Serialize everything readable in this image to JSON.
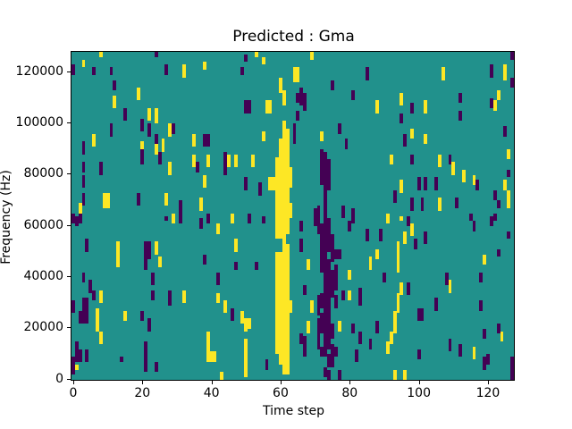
{
  "title": "Predicted : Gma",
  "chart_data": {
    "type": "heatmap",
    "title": "Predicted : Gma",
    "xlabel": "Time step",
    "ylabel": "Frequency (Hz)",
    "x_ticks": [
      0,
      20,
      40,
      60,
      80,
      100,
      120
    ],
    "y_ticks": [
      0,
      20000,
      40000,
      60000,
      80000,
      100000,
      120000
    ],
    "x_range": [
      0,
      128
    ],
    "y_range_hz": [
      0,
      128000
    ],
    "grid": [
      128,
      128
    ],
    "legend": "none",
    "colors": {
      "background_value": "#21918c",
      "high_value": "#fde725",
      "low_value": "#440154",
      "figure_background": "#ffffff",
      "axes_frame": "#000000"
    },
    "notes": "cells encoded as [time_index, freq_bin_low, freq_bin_high, optional_width_in_columns]; freq bin = kHz index from bottom (0..127)",
    "cells": {
      "yellow": [
        [
          59,
          10,
          49
        ],
        [
          59,
          55,
          86
        ],
        [
          60,
          6,
          49
        ],
        [
          60,
          55,
          93
        ],
        [
          60,
          112,
          117
        ],
        [
          61,
          2,
          100
        ],
        [
          61,
          107,
          112
        ],
        [
          62,
          2,
          52
        ],
        [
          62,
          57,
          97
        ],
        [
          63,
          63,
          68
        ],
        [
          63,
          75,
          82
        ],
        [
          63,
          26,
          30
        ],
        [
          8,
          126,
          127
        ],
        [
          3,
          122,
          124
        ],
        [
          53,
          126,
          127
        ],
        [
          55,
          123,
          125
        ],
        [
          38,
          121,
          123
        ],
        [
          32,
          118,
          122
        ],
        [
          19,
          109,
          113
        ],
        [
          12,
          106,
          110
        ],
        [
          22,
          101,
          105
        ],
        [
          24,
          100,
          105
        ],
        [
          56,
          104,
          108,
          2
        ],
        [
          26,
          89,
          93
        ],
        [
          28,
          95,
          99
        ],
        [
          35,
          91,
          95
        ],
        [
          6,
          91,
          95
        ],
        [
          20,
          88,
          92
        ],
        [
          24,
          88,
          92
        ],
        [
          35,
          83,
          87
        ],
        [
          39,
          83,
          87
        ],
        [
          45,
          83,
          87
        ],
        [
          47,
          83,
          87
        ],
        [
          52,
          83,
          87
        ],
        [
          28,
          80,
          84
        ],
        [
          38,
          75,
          79
        ],
        [
          57,
          74,
          78,
          2
        ],
        [
          2,
          64,
          68
        ],
        [
          9,
          67,
          72,
          2
        ],
        [
          27,
          68,
          72
        ],
        [
          29,
          61,
          64
        ],
        [
          37,
          66,
          70
        ],
        [
          46,
          61,
          64
        ],
        [
          55,
          93,
          96
        ],
        [
          31,
          61,
          63
        ],
        [
          46,
          62,
          63
        ],
        [
          42,
          57,
          60
        ],
        [
          13,
          44,
          53
        ],
        [
          24,
          49,
          53
        ],
        [
          25,
          44,
          47
        ],
        [
          47,
          50,
          54
        ],
        [
          8,
          30,
          34
        ],
        [
          32,
          30,
          34
        ],
        [
          42,
          30,
          33
        ],
        [
          44,
          26,
          30
        ],
        [
          49,
          22,
          26
        ],
        [
          50,
          19,
          23
        ],
        [
          7,
          23,
          27
        ],
        [
          7,
          19,
          23
        ],
        [
          15,
          23,
          26
        ],
        [
          51,
          20,
          23
        ],
        [
          39,
          10,
          18
        ],
        [
          39,
          7,
          10,
          3
        ],
        [
          50,
          1,
          15
        ],
        [
          8,
          14,
          18
        ],
        [
          1,
          4,
          5
        ],
        [
          43,
          0,
          2
        ],
        [
          69,
          125,
          127
        ],
        [
          64,
          116,
          121,
          2
        ],
        [
          95,
          107,
          111
        ],
        [
          88,
          104,
          108
        ],
        [
          102,
          104,
          108
        ],
        [
          107,
          117,
          121
        ],
        [
          125,
          117,
          122
        ],
        [
          123,
          109,
          112
        ],
        [
          122,
          105,
          108
        ],
        [
          126,
          86,
          89
        ],
        [
          125,
          74,
          77
        ],
        [
          126,
          71,
          73
        ],
        [
          126,
          67,
          70
        ],
        [
          72,
          93,
          96
        ],
        [
          98,
          94,
          97
        ],
        [
          102,
          92,
          95
        ],
        [
          92,
          84,
          87
        ],
        [
          106,
          83,
          87
        ],
        [
          110,
          80,
          84
        ],
        [
          113,
          77,
          81
        ],
        [
          116,
          76,
          79
        ],
        [
          95,
          73,
          77
        ],
        [
          106,
          66,
          70
        ],
        [
          91,
          61,
          64
        ],
        [
          95,
          62,
          63
        ],
        [
          98,
          56,
          60
        ],
        [
          96,
          53,
          57
        ],
        [
          94,
          49,
          53
        ],
        [
          88,
          47,
          50
        ],
        [
          86,
          43,
          47
        ],
        [
          94,
          42,
          48
        ],
        [
          80,
          31,
          34
        ],
        [
          95,
          33,
          37
        ],
        [
          94,
          26,
          33
        ],
        [
          93,
          18,
          26
        ],
        [
          92,
          14,
          18
        ],
        [
          91,
          10,
          14
        ],
        [
          68,
          43,
          46
        ],
        [
          69,
          26,
          30
        ],
        [
          68,
          18,
          22
        ],
        [
          77,
          19,
          22
        ],
        [
          80,
          39,
          42
        ],
        [
          109,
          34,
          38
        ],
        [
          116,
          8,
          12
        ],
        [
          119,
          45,
          48
        ],
        [
          124,
          15,
          18
        ],
        [
          93,
          0,
          3
        ],
        [
          96,
          0,
          3
        ]
      ],
      "purple": [
        [
          70,
          60,
          66
        ],
        [
          71,
          57,
          67
        ],
        [
          71,
          25,
          32
        ],
        [
          71,
          16,
          23
        ],
        [
          71,
          12,
          15
        ],
        [
          72,
          76,
          89
        ],
        [
          72,
          42,
          60
        ],
        [
          72,
          28,
          33
        ],
        [
          72,
          18,
          25
        ],
        [
          72,
          9,
          12
        ],
        [
          73,
          71,
          88
        ],
        [
          73,
          46,
          70
        ],
        [
          73,
          32,
          45
        ],
        [
          73,
          21,
          31
        ],
        [
          73,
          9,
          20
        ],
        [
          73,
          1,
          4
        ],
        [
          74,
          74,
          85
        ],
        [
          74,
          50,
          62
        ],
        [
          74,
          28,
          46
        ],
        [
          74,
          12,
          27
        ],
        [
          74,
          5,
          9
        ],
        [
          74,
          0,
          3
        ],
        [
          75,
          46,
          56
        ],
        [
          75,
          32,
          42
        ],
        [
          75,
          16,
          21
        ],
        [
          75,
          5,
          13
        ],
        [
          76,
          35,
          44
        ],
        [
          76,
          28,
          32
        ],
        [
          76,
          9,
          12
        ],
        [
          76,
          47,
          50
        ],
        [
          24,
          126,
          127
        ],
        [
          50,
          124,
          126
        ],
        [
          0,
          119,
          122
        ],
        [
          6,
          119,
          121
        ],
        [
          11,
          119,
          121
        ],
        [
          49,
          119,
          121
        ],
        [
          27,
          119,
          122
        ],
        [
          12,
          113,
          116
        ],
        [
          15,
          101,
          105
        ],
        [
          20,
          97,
          101
        ],
        [
          22,
          95,
          99
        ],
        [
          24,
          92,
          95
        ],
        [
          29,
          96,
          99
        ],
        [
          38,
          91,
          95,
          2
        ],
        [
          50,
          104,
          108,
          2
        ],
        [
          44,
          84,
          88
        ],
        [
          44,
          80,
          84
        ],
        [
          36,
          81,
          84
        ],
        [
          3,
          88,
          92
        ],
        [
          3,
          81,
          84
        ],
        [
          8,
          80,
          84
        ],
        [
          11,
          95,
          99
        ],
        [
          25,
          84,
          88
        ],
        [
          20,
          84,
          89
        ],
        [
          31,
          65,
          69
        ],
        [
          31,
          61,
          64
        ],
        [
          39,
          61,
          64
        ],
        [
          19,
          68,
          72
        ],
        [
          3,
          75,
          79
        ],
        [
          3,
          68,
          72
        ],
        [
          2,
          61,
          64
        ],
        [
          51,
          61,
          64
        ],
        [
          0,
          61,
          64
        ],
        [
          50,
          74,
          78
        ],
        [
          54,
          72,
          76
        ],
        [
          1,
          60,
          63
        ],
        [
          27,
          62,
          63
        ],
        [
          37,
          59,
          62
        ],
        [
          55,
          61,
          63
        ],
        [
          4,
          50,
          54
        ],
        [
          21,
          47,
          53,
          2
        ],
        [
          21,
          43,
          47
        ],
        [
          38,
          45,
          48
        ],
        [
          47,
          43,
          45
        ],
        [
          53,
          43,
          45
        ],
        [
          3,
          38,
          41
        ],
        [
          5,
          34,
          38
        ],
        [
          6,
          31,
          34
        ],
        [
          23,
          37,
          41
        ],
        [
          23,
          31,
          34
        ],
        [
          28,
          29,
          34
        ],
        [
          42,
          37,
          41
        ],
        [
          46,
          23,
          27
        ],
        [
          3,
          26,
          31,
          2
        ],
        [
          2,
          22,
          26,
          3
        ],
        [
          20,
          23,
          26
        ],
        [
          22,
          19,
          23
        ],
        [
          0,
          26,
          30
        ],
        [
          1,
          10,
          14
        ],
        [
          1,
          7,
          11,
          2
        ],
        [
          4,
          7,
          11
        ],
        [
          21,
          10,
          14
        ],
        [
          21,
          7,
          10
        ],
        [
          24,
          3,
          6
        ],
        [
          0,
          5,
          8
        ],
        [
          0,
          2,
          5
        ],
        [
          14,
          7,
          8
        ],
        [
          21,
          3,
          6
        ],
        [
          56,
          4,
          7
        ],
        [
          85,
          117,
          121
        ],
        [
          75,
          113,
          116
        ],
        [
          127,
          125,
          127
        ],
        [
          127,
          114,
          117
        ],
        [
          121,
          118,
          122
        ],
        [
          121,
          106,
          109
        ],
        [
          65,
          108,
          111
        ],
        [
          67,
          105,
          111
        ],
        [
          66,
          107,
          113
        ],
        [
          81,
          109,
          112
        ],
        [
          98,
          104,
          107
        ],
        [
          112,
          108,
          111
        ],
        [
          95,
          100,
          103
        ],
        [
          112,
          101,
          104
        ],
        [
          65,
          101,
          104
        ],
        [
          77,
          96,
          99
        ],
        [
          79,
          90,
          93
        ],
        [
          96,
          91,
          95
        ],
        [
          98,
          84,
          87
        ],
        [
          109,
          84,
          87
        ],
        [
          117,
          74,
          77
        ],
        [
          100,
          74,
          78
        ],
        [
          102,
          74,
          78
        ],
        [
          105,
          74,
          78
        ],
        [
          93,
          69,
          73
        ],
        [
          98,
          66,
          70
        ],
        [
          101,
          66,
          70
        ],
        [
          111,
          67,
          70
        ],
        [
          78,
          63,
          67
        ],
        [
          81,
          63,
          66
        ],
        [
          115,
          62,
          64
        ],
        [
          122,
          62,
          64
        ],
        [
          125,
          95,
          98
        ],
        [
          126,
          79,
          81
        ],
        [
          122,
          70,
          73
        ],
        [
          123,
          67,
          69
        ],
        [
          64,
          92,
          99
        ],
        [
          81,
          61,
          63
        ],
        [
          80,
          58,
          61
        ],
        [
          85,
          54,
          58
        ],
        [
          89,
          54,
          58
        ],
        [
          99,
          51,
          54
        ],
        [
          97,
          60,
          63
        ],
        [
          102,
          53,
          57
        ],
        [
          116,
          58,
          61
        ],
        [
          121,
          60,
          63
        ],
        [
          77,
          47,
          50
        ],
        [
          90,
          38,
          41
        ],
        [
          78,
          31,
          34
        ],
        [
          83,
          29,
          35
        ],
        [
          97,
          33,
          37
        ],
        [
          100,
          23,
          27
        ],
        [
          81,
          18,
          21
        ],
        [
          88,
          18,
          22
        ],
        [
          83,
          14,
          18
        ],
        [
          86,
          12,
          15
        ],
        [
          100,
          8,
          11
        ],
        [
          82,
          7,
          11
        ],
        [
          108,
          37,
          41
        ],
        [
          105,
          27,
          31
        ],
        [
          101,
          23,
          27
        ],
        [
          118,
          38,
          41
        ],
        [
          118,
          27,
          30
        ],
        [
          123,
          18,
          21
        ],
        [
          119,
          16,
          19
        ],
        [
          123,
          48,
          50
        ],
        [
          126,
          55,
          57
        ],
        [
          112,
          9,
          13
        ],
        [
          109,
          11,
          15
        ],
        [
          119,
          4,
          8
        ],
        [
          120,
          6,
          9
        ],
        [
          127,
          0,
          8
        ],
        [
          77,
          0,
          3
        ],
        [
          66,
          58,
          61
        ],
        [
          66,
          50,
          54
        ],
        [
          67,
          9,
          16
        ],
        [
          67,
          33,
          36
        ],
        [
          66,
          14,
          17
        ]
      ]
    }
  }
}
